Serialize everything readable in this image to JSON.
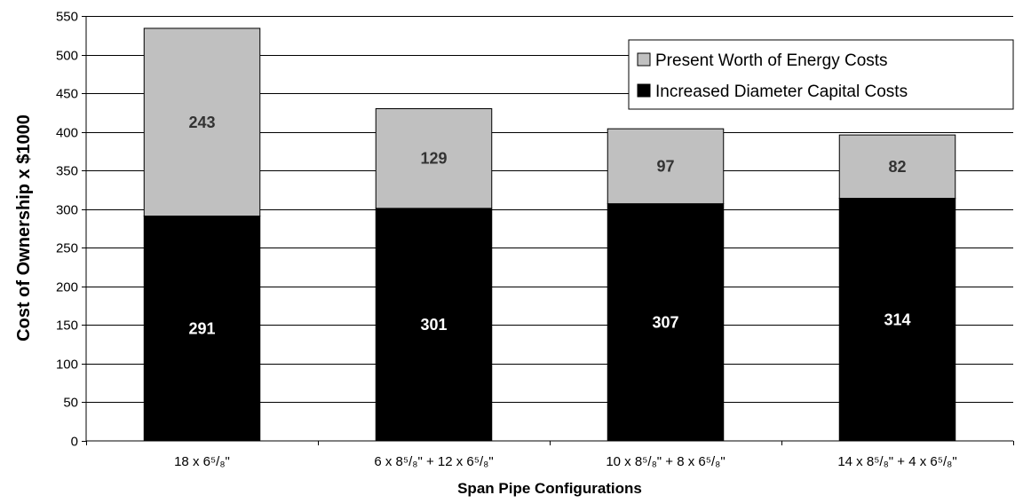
{
  "chart_data": {
    "type": "bar",
    "stacked": true,
    "categories": [
      "18 x 6⁵/₈\"",
      "6 x 8⁵/₈\" + 12 x 6⁵/₈\"",
      "10 x 8⁵/₈\" + 8 x 6⁵/₈\"",
      "14 x 8⁵/₈\" + 4 x 6⁵/₈\""
    ],
    "series": [
      {
        "name": "Increased Diameter Capital Costs",
        "values": [
          291,
          301,
          307,
          314
        ],
        "color": "#000000",
        "label_color": "#ffffff"
      },
      {
        "name": "Present Worth of Energy Costs",
        "values": [
          243,
          129,
          97,
          82
        ],
        "color": "#c0c0c0",
        "label_color": "#333333"
      }
    ],
    "legend_order": [
      1,
      0
    ],
    "legend_position": "top-right",
    "xlabel": "Span Pipe Configurations",
    "ylabel": "Cost of Ownership x $1000",
    "ylim": [
      0,
      550
    ],
    "yticks": [
      0,
      50,
      100,
      150,
      200,
      250,
      300,
      350,
      400,
      450,
      500,
      550
    ],
    "grid": true
  }
}
